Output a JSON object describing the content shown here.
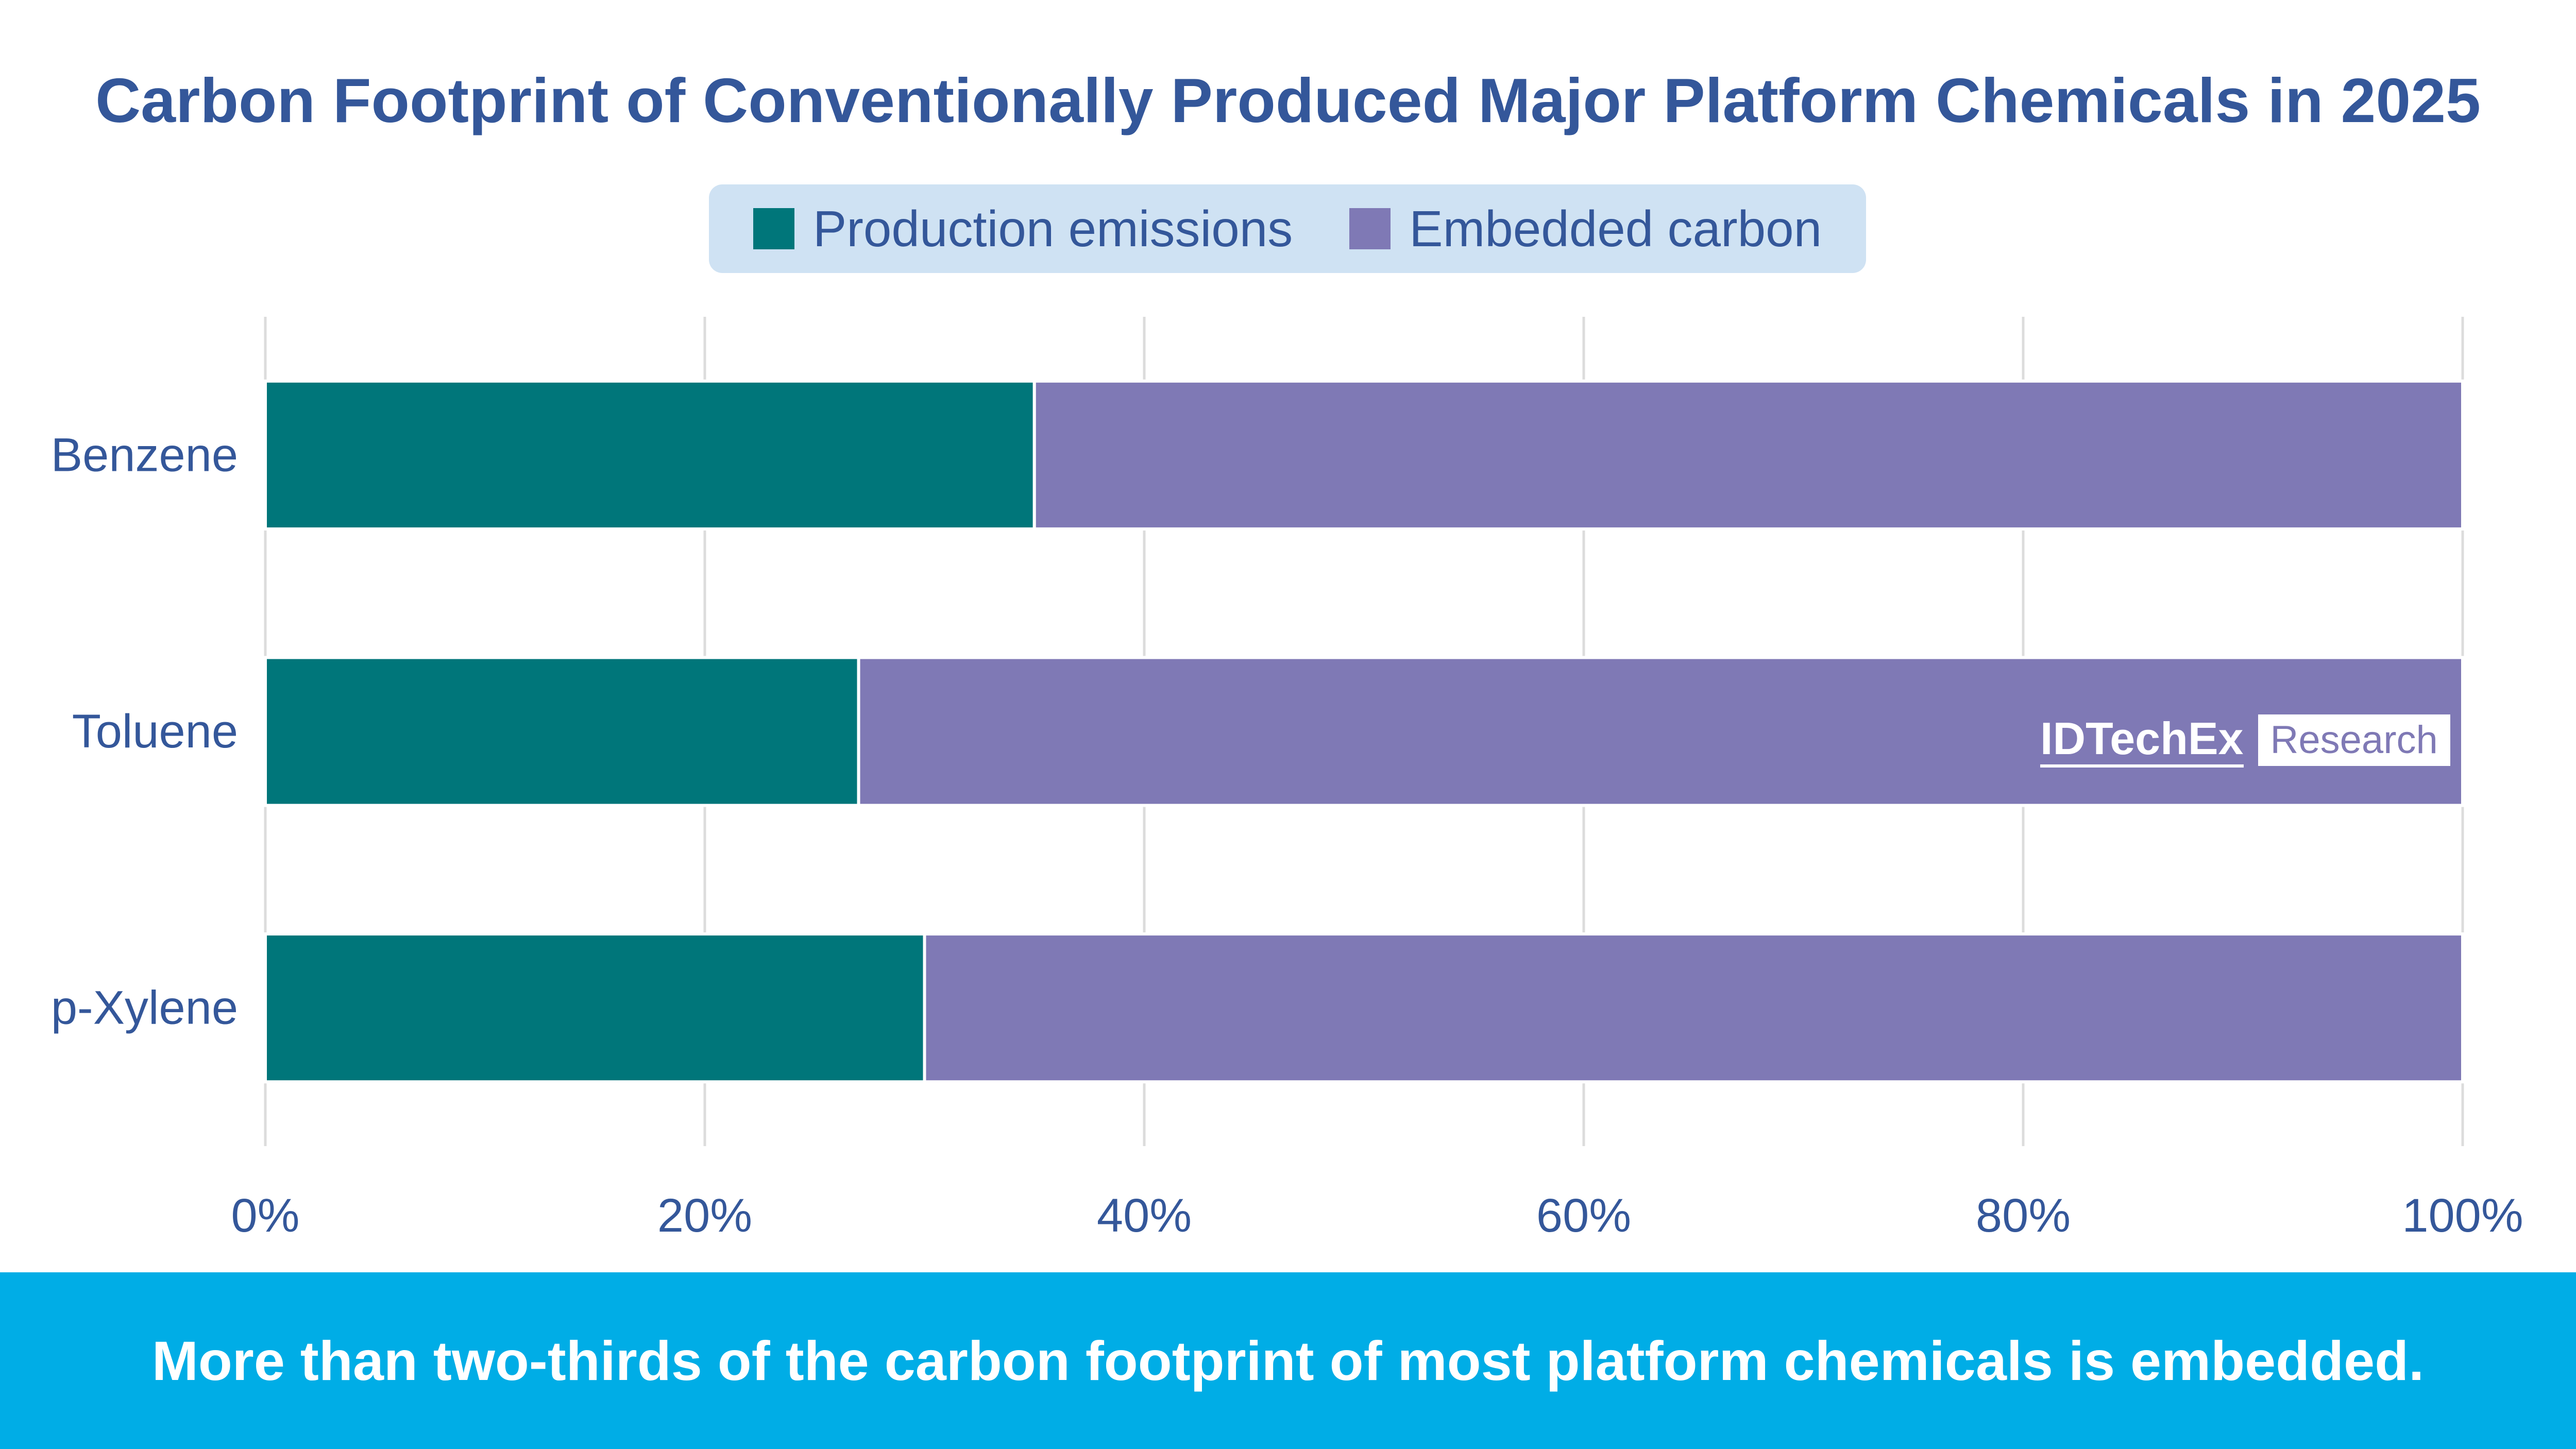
{
  "chart_data": {
    "type": "bar",
    "orientation": "horizontal",
    "stacked": true,
    "title": "Carbon Footprint of Conventionally Produced Major Platform Chemicals in 2025",
    "categories": [
      "Benzene",
      "Toluene",
      "p-Xylene"
    ],
    "series": [
      {
        "name": "Production emissions",
        "color": "#00767a",
        "values": [
          35,
          27,
          30
        ]
      },
      {
        "name": "Embedded carbon",
        "color": "#7f79b5",
        "values": [
          65,
          73,
          70
        ]
      }
    ],
    "xlim": [
      0,
      100
    ],
    "xticks": [
      "0%",
      "20%",
      "40%",
      "60%",
      "80%",
      "100%"
    ],
    "legend_position": "top",
    "grid": "vertical"
  },
  "logo": {
    "brand": "IDTechEx",
    "badge": "Research"
  },
  "footer": {
    "text": "More than two-thirds of the carbon footprint of most platform chemicals is embedded."
  }
}
